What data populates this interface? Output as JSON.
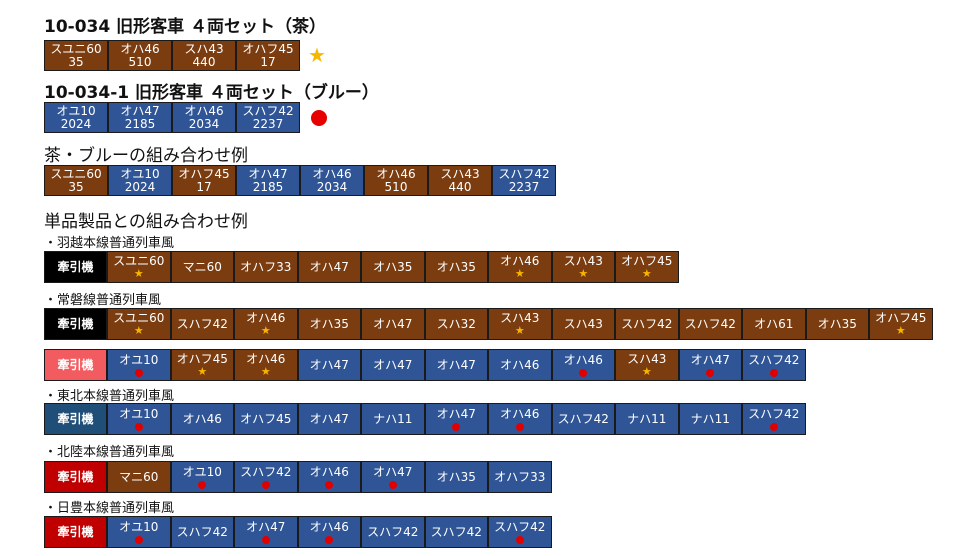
{
  "colors": {
    "brown": "#7b3c10",
    "blue": "#2f5597",
    "star": "#f7b500",
    "dot": "#e00000"
  },
  "sections": [
    {
      "title": "10-034 旧形客車 ４両セット（茶）",
      "legend": "star",
      "cars": [
        {
          "name": "スユニ60",
          "num": "35",
          "c": "b"
        },
        {
          "name": "オハ46",
          "num": "510",
          "c": "b"
        },
        {
          "name": "スハ43",
          "num": "440",
          "c": "b"
        },
        {
          "name": "オハフ45",
          "num": "17",
          "c": "b"
        }
      ]
    },
    {
      "title": "10-034-1 旧形客車 ４両セット（ブルー）",
      "legend": "dot",
      "cars": [
        {
          "name": "オユ10",
          "num": "2024",
          "c": "u"
        },
        {
          "name": "オハ47",
          "num": "2185",
          "c": "u"
        },
        {
          "name": "オハ46",
          "num": "2034",
          "c": "u"
        },
        {
          "name": "スハフ42",
          "num": "2237",
          "c": "u"
        }
      ]
    },
    {
      "title": "茶・ブルーの組み合わせ例",
      "cars": [
        {
          "name": "スユニ60",
          "num": "35",
          "c": "b"
        },
        {
          "name": "オユ10",
          "num": "2024",
          "c": "u"
        },
        {
          "name": "オハフ45",
          "num": "17",
          "c": "b"
        },
        {
          "name": "オハ47",
          "num": "2185",
          "c": "u"
        },
        {
          "name": "オハ46",
          "num": "2034",
          "c": "u"
        },
        {
          "name": "オハ46",
          "num": "510",
          "c": "b"
        },
        {
          "name": "スハ43",
          "num": "440",
          "c": "b"
        },
        {
          "name": "スハフ42",
          "num": "2237",
          "c": "u"
        }
      ]
    }
  ],
  "examples_title": "単品製品との組み合わせ例",
  "loco_label": "牽引機",
  "examples": [
    {
      "label": "・羽越本線普通列車風",
      "rows": [
        {
          "loco": "k",
          "cars": [
            {
              "name": "スユニ60",
              "m": "star",
              "c": "b"
            },
            {
              "name": "マニ60",
              "c": "b"
            },
            {
              "name": "オハフ33",
              "c": "b"
            },
            {
              "name": "オハ47",
              "c": "b"
            },
            {
              "name": "オハ35",
              "c": "b"
            },
            {
              "name": "オハ35",
              "c": "b"
            },
            {
              "name": "オハ46",
              "m": "star",
              "c": "b"
            },
            {
              "name": "スハ43",
              "m": "star",
              "c": "b"
            },
            {
              "name": "オハフ45",
              "m": "star",
              "c": "b"
            }
          ]
        }
      ]
    },
    {
      "label": "・常磐線普通列車風",
      "rows": [
        {
          "loco": "k",
          "cars": [
            {
              "name": "スユニ60",
              "m": "star",
              "c": "b"
            },
            {
              "name": "スハフ42",
              "c": "b"
            },
            {
              "name": "オハ46",
              "m": "star",
              "c": "b"
            },
            {
              "name": "オハ35",
              "c": "b"
            },
            {
              "name": "オハ47",
              "c": "b"
            },
            {
              "name": "スハ32",
              "c": "b"
            },
            {
              "name": "スハ43",
              "m": "star",
              "c": "b"
            },
            {
              "name": "スハ43",
              "c": "b"
            },
            {
              "name": "スハフ42",
              "c": "b"
            },
            {
              "name": "スハフ42",
              "c": "b"
            },
            {
              "name": "オハ61",
              "c": "b"
            },
            {
              "name": "オハ35",
              "c": "b"
            },
            {
              "name": "オハフ45",
              "m": "star",
              "c": "b"
            }
          ]
        },
        {
          "loco": "p",
          "cars": [
            {
              "name": "オユ10",
              "m": "dot",
              "c": "u"
            },
            {
              "name": "オハフ45",
              "m": "star",
              "c": "b"
            },
            {
              "name": "オハ46",
              "m": "star",
              "c": "b"
            },
            {
              "name": "オハ47",
              "c": "u"
            },
            {
              "name": "オハ47",
              "c": "u"
            },
            {
              "name": "オハ47",
              "c": "u"
            },
            {
              "name": "オハ46",
              "c": "u"
            },
            {
              "name": "オハ46",
              "m": "dot",
              "c": "u"
            },
            {
              "name": "スハ43",
              "m": "star",
              "c": "b"
            },
            {
              "name": "オハ47",
              "m": "dot",
              "c": "u"
            },
            {
              "name": "スハフ42",
              "m": "dot",
              "c": "u"
            }
          ]
        }
      ]
    },
    {
      "label": "・東北本線普通列車風",
      "rows": [
        {
          "loco": "t",
          "cars": [
            {
              "name": "オユ10",
              "m": "dot",
              "c": "u"
            },
            {
              "name": "オハ46",
              "c": "u"
            },
            {
              "name": "オハフ45",
              "c": "u"
            },
            {
              "name": "オハ47",
              "c": "u"
            },
            {
              "name": "ナハ11",
              "c": "u"
            },
            {
              "name": "オハ47",
              "m": "dot",
              "c": "u"
            },
            {
              "name": "オハ46",
              "m": "dot",
              "c": "u"
            },
            {
              "name": "スハフ42",
              "c": "u"
            },
            {
              "name": "ナハ11",
              "c": "u"
            },
            {
              "name": "ナハ11",
              "c": "u"
            },
            {
              "name": "スハフ42",
              "m": "dot",
              "c": "u"
            }
          ]
        }
      ]
    },
    {
      "label": "・北陸本線普通列車風",
      "rows": [
        {
          "loco": "r",
          "cars": [
            {
              "name": "マニ60",
              "c": "b"
            },
            {
              "name": "オユ10",
              "m": "dot",
              "c": "u"
            },
            {
              "name": "スハフ42",
              "m": "dot",
              "c": "u"
            },
            {
              "name": "オハ46",
              "m": "dot",
              "c": "u"
            },
            {
              "name": "オハ47",
              "m": "dot",
              "c": "u"
            },
            {
              "name": "オハ35",
              "c": "u"
            },
            {
              "name": "オハフ33",
              "c": "u"
            }
          ]
        }
      ]
    },
    {
      "label": "・日豊本線普通列車風",
      "rows": [
        {
          "loco": "r",
          "cars": [
            {
              "name": "オユ10",
              "m": "dot",
              "c": "u"
            },
            {
              "name": "スハフ42",
              "c": "u"
            },
            {
              "name": "オハ47",
              "m": "dot",
              "c": "u"
            },
            {
              "name": "オハ46",
              "m": "dot",
              "c": "u"
            },
            {
              "name": "スハフ42",
              "c": "u"
            },
            {
              "name": "スハフ42",
              "c": "u"
            },
            {
              "name": "スハフ42",
              "m": "dot",
              "c": "u"
            }
          ]
        }
      ]
    }
  ]
}
